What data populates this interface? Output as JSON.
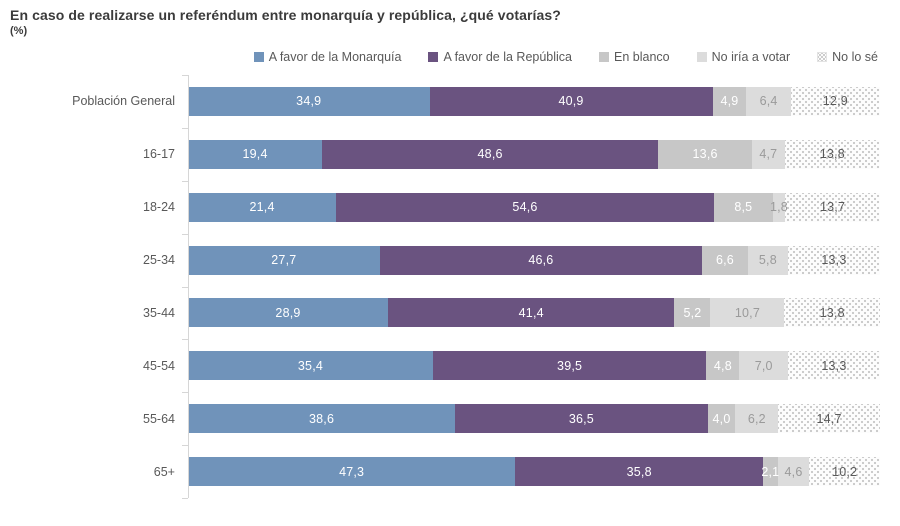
{
  "chart_data": {
    "type": "bar",
    "orientation": "horizontal",
    "stacked": true,
    "title": "En caso de realizarse un referéndum entre monarquía y república, ¿qué votarías?",
    "subtitle": "(%)",
    "unit": "%",
    "xlim": [
      0,
      100
    ],
    "grid": false,
    "legend_position": "top-right",
    "value_format": "one decimal, comma separator",
    "categories": [
      "Población General",
      "16-17",
      "18-24",
      "25-34",
      "35-44",
      "45-54",
      "55-64",
      "65+"
    ],
    "series": [
      {
        "key": "monarquia",
        "name": "A favor de la Monarquía",
        "color": "#7093BA",
        "label_color": "#FFFFFF",
        "pattern": false,
        "values": [
          34.9,
          19.4,
          21.4,
          27.7,
          28.9,
          35.4,
          38.6,
          47.3
        ]
      },
      {
        "key": "republica",
        "name": "A favor de la República",
        "color": "#6A5380",
        "label_color": "#FFFFFF",
        "pattern": false,
        "values": [
          40.9,
          48.6,
          54.6,
          46.6,
          41.4,
          39.5,
          36.5,
          35.8
        ]
      },
      {
        "key": "en-blanco",
        "name": "En blanco",
        "color": "#C7C7C7",
        "label_color": "#FFFFFF",
        "pattern": false,
        "values": [
          4.9,
          13.6,
          8.5,
          6.6,
          5.2,
          4.8,
          4.0,
          2.1
        ]
      },
      {
        "key": "no-iria-a-votar",
        "name": "No iría a votar",
        "color": "#DCDCDC",
        "label_color": "#9A9A9A",
        "pattern": false,
        "values": [
          6.4,
          4.7,
          1.8,
          5.8,
          10.7,
          7.0,
          6.2,
          4.6
        ]
      },
      {
        "key": "no-lo-se",
        "name": "No lo sé",
        "color": "#FDFDFD",
        "pattern_dot_color": "#C9C9C9",
        "label_color": "#595959",
        "pattern": true,
        "values": [
          12.9,
          13.8,
          13.7,
          13.3,
          13.8,
          13.3,
          14.7,
          10.2
        ]
      }
    ]
  }
}
